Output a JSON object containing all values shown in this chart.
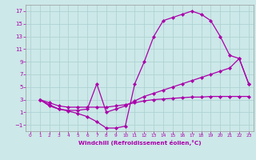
{
  "xlabel": "Windchill (Refroidissement éolien,°C)",
  "bg_color": "#cce8e8",
  "grid_color": "#aacfcf",
  "line_color": "#aa00aa",
  "xlim": [
    -0.5,
    23.5
  ],
  "ylim": [
    -2,
    18
  ],
  "xticks": [
    0,
    1,
    2,
    3,
    4,
    5,
    6,
    7,
    8,
    9,
    10,
    11,
    12,
    13,
    14,
    15,
    16,
    17,
    18,
    19,
    20,
    21,
    22,
    23
  ],
  "yticks": [
    -1,
    1,
    3,
    5,
    7,
    9,
    11,
    13,
    15,
    17
  ],
  "line1_x": [
    1,
    2,
    3,
    4,
    5,
    6,
    7,
    8,
    9,
    10,
    11,
    12,
    13,
    14,
    15,
    16,
    17,
    18,
    19,
    20,
    21,
    22,
    23
  ],
  "line1_y": [
    3,
    2,
    1.5,
    1.2,
    0.8,
    0.3,
    -0.5,
    -1.5,
    -1.5,
    -1.2,
    5.5,
    9.0,
    13.0,
    15.5,
    16.0,
    16.5,
    17.0,
    16.5,
    15.5,
    13.0,
    10.0,
    9.5,
    5.5
  ],
  "line2_x": [
    1,
    2,
    3,
    4,
    5,
    6,
    7,
    8,
    9,
    10,
    11,
    12,
    13,
    14,
    15,
    16,
    17,
    18,
    19,
    20,
    21,
    22,
    23
  ],
  "line2_y": [
    3,
    2.2,
    1.5,
    1.3,
    1.3,
    1.5,
    5.5,
    1.0,
    1.5,
    2.0,
    2.8,
    3.5,
    4.0,
    4.5,
    5.0,
    5.5,
    6.0,
    6.5,
    7.0,
    7.5,
    8.0,
    9.5,
    5.5
  ],
  "line3_x": [
    1,
    2,
    3,
    4,
    5,
    6,
    7,
    8,
    9,
    10,
    11,
    12,
    13,
    14,
    15,
    16,
    17,
    18,
    19,
    20,
    21,
    22,
    23
  ],
  "line3_y": [
    3,
    2.5,
    2.0,
    1.8,
    1.8,
    1.8,
    1.8,
    1.8,
    2.0,
    2.2,
    2.5,
    2.8,
    3.0,
    3.1,
    3.2,
    3.3,
    3.4,
    3.4,
    3.5,
    3.5,
    3.5,
    3.5,
    3.5
  ]
}
